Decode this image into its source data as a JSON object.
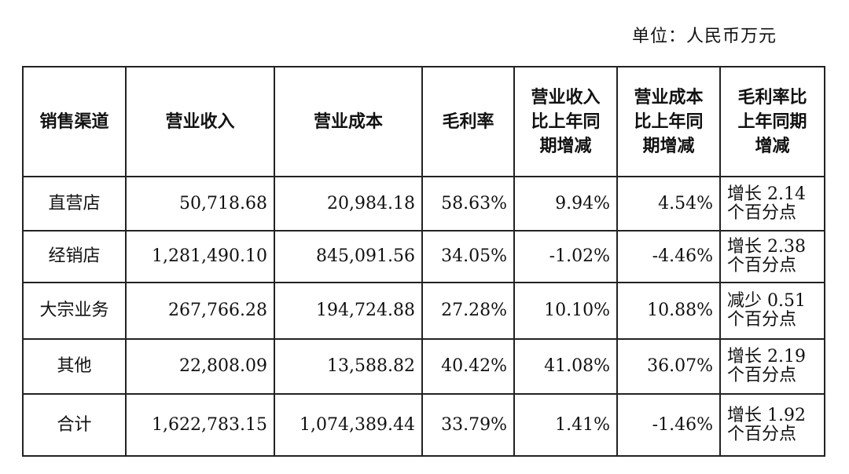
{
  "unit_label": "单位：人民币万元",
  "headers": {
    "channel": "销售渠道",
    "revenue": "营业收入",
    "cost": "营业成本",
    "margin": "毛利率",
    "revenue_yoy": [
      "营业收入",
      "比上年同",
      "期增减"
    ],
    "cost_yoy": [
      "营业成本",
      "比上年同",
      "期增减"
    ],
    "margin_yoy": [
      "毛利率比",
      "上年同期",
      "增减"
    ]
  },
  "rows": [
    {
      "channel": "直营店",
      "revenue": "50,718.68",
      "cost": "20,984.18",
      "margin": "58.63%",
      "revenue_yoy": "9.94%",
      "cost_yoy": "4.54%",
      "margin_yoy": [
        "增长 2.14",
        "个百分点"
      ]
    },
    {
      "channel": "经销店",
      "revenue": "1,281,490.10",
      "cost": "845,091.56",
      "margin": "34.05%",
      "revenue_yoy": "-1.02%",
      "cost_yoy": "-4.46%",
      "margin_yoy": [
        "增长 2.38",
        "个百分点"
      ]
    },
    {
      "channel": "大宗业务",
      "revenue": "267,766.28",
      "cost": "194,724.88",
      "margin": "27.28%",
      "revenue_yoy": "10.10%",
      "cost_yoy": "10.88%",
      "margin_yoy": [
        "减少 0.51",
        "个百分点"
      ]
    },
    {
      "channel": "其他",
      "revenue": "22,808.09",
      "cost": "13,588.82",
      "margin": "40.42%",
      "revenue_yoy": "41.08%",
      "cost_yoy": "36.07%",
      "margin_yoy": [
        "增长 2.19",
        "个百分点"
      ]
    },
    {
      "channel": "合计",
      "revenue": "1,622,783.15",
      "cost": "1,074,389.44",
      "margin": "33.79%",
      "revenue_yoy": "1.41%",
      "cost_yoy": "-1.46%",
      "margin_yoy": [
        "增长 1.92",
        "个百分点"
      ]
    }
  ]
}
